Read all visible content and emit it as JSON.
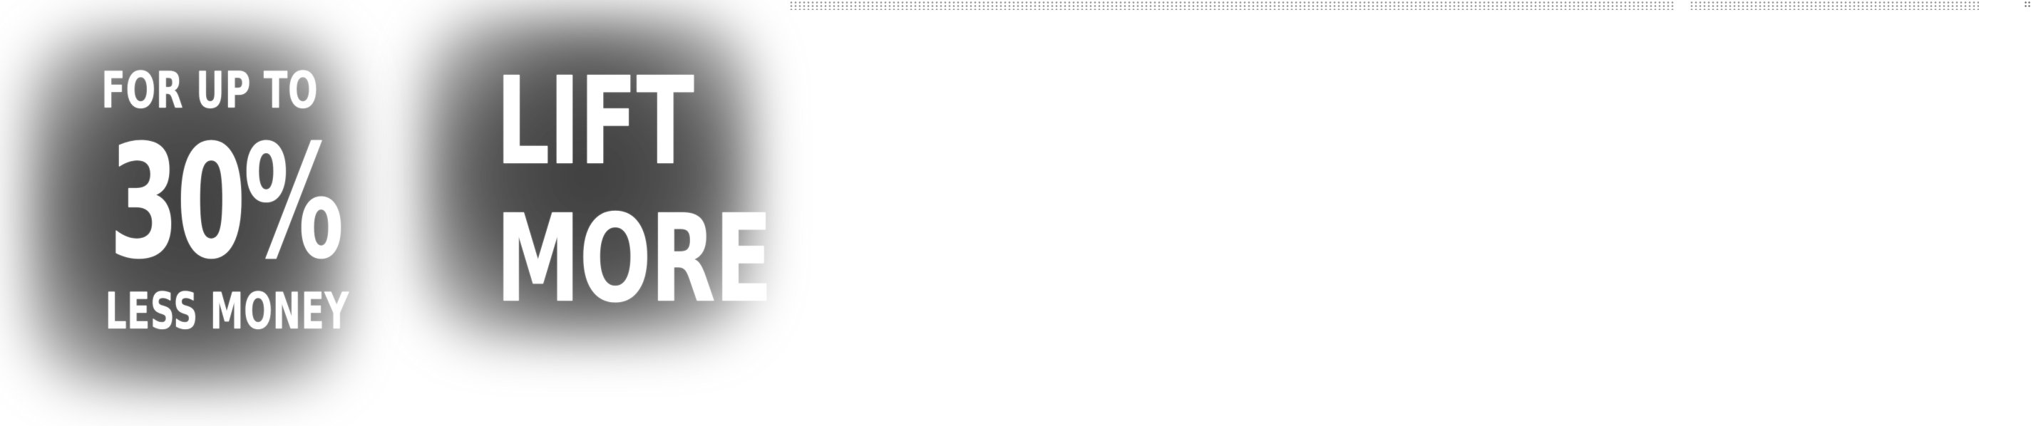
{
  "promo": {
    "left": {
      "top_text": "FOR UP TO",
      "big_text": "30%",
      "bottom_text": "LESS MONEY"
    },
    "right": {
      "line_1": "LIFT",
      "line_2": "MORE"
    }
  },
  "colors": {
    "background": "#ffffff",
    "text": "#ffffff",
    "halo": "#3a3a3a",
    "dots": "#6e6e6e"
  }
}
